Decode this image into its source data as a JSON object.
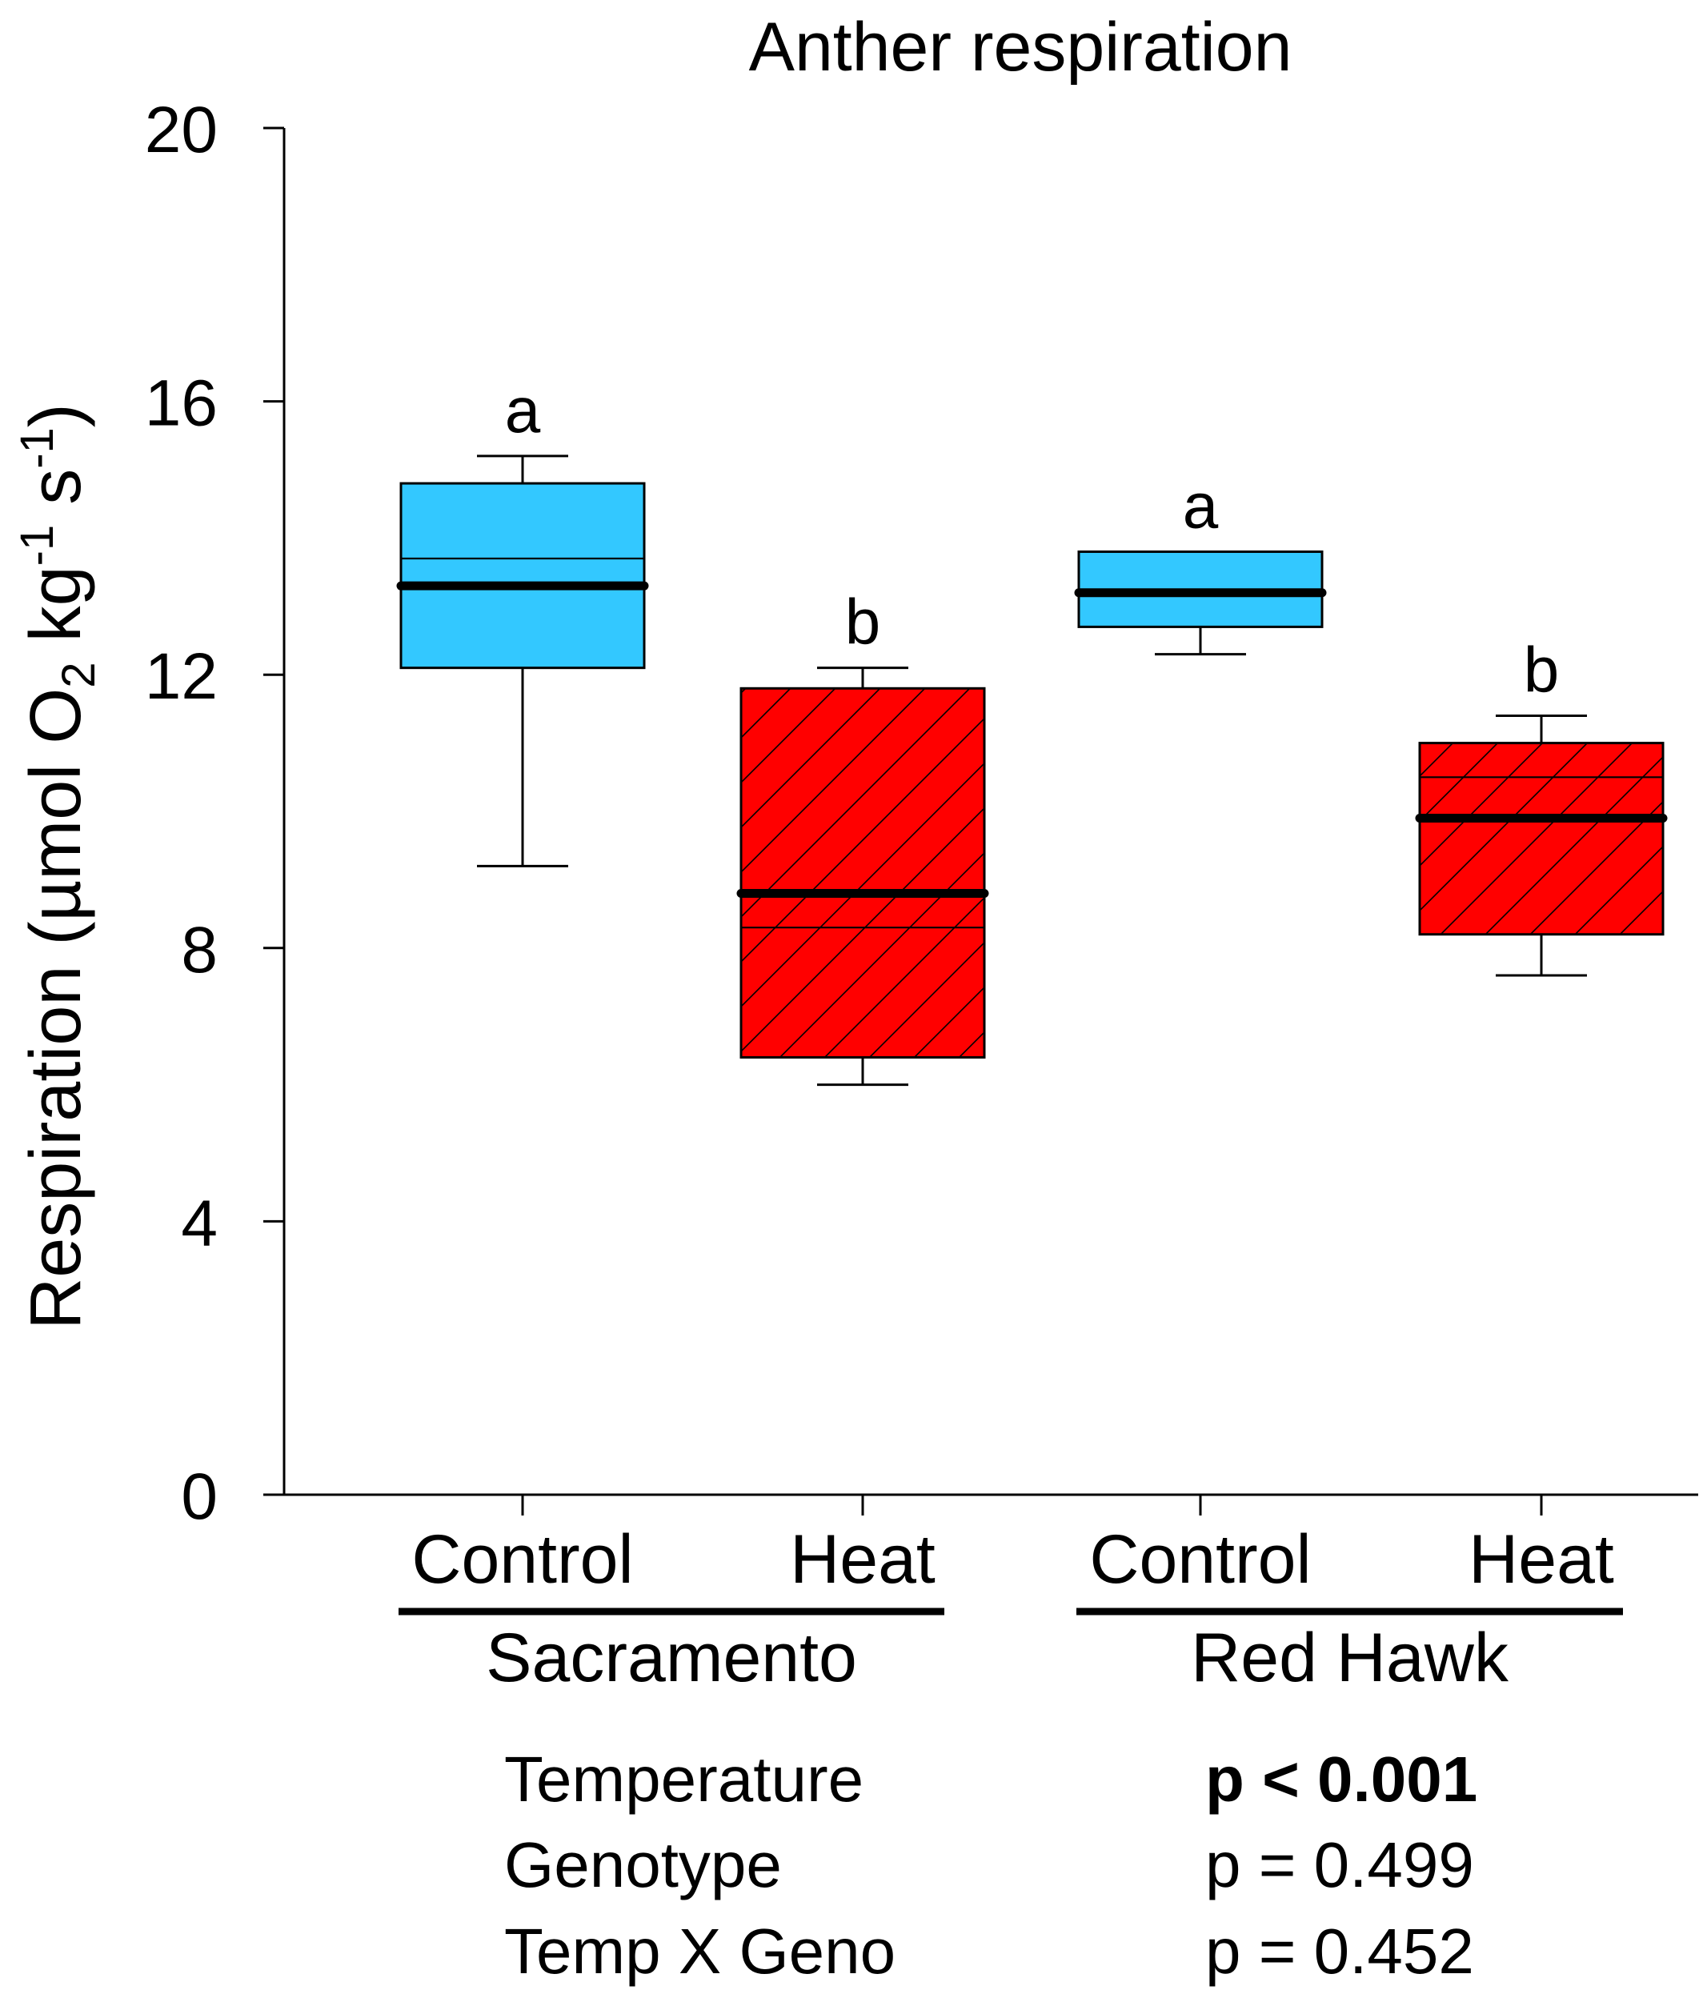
{
  "chart_data": {
    "type": "box",
    "title": "Anther respiration",
    "ylabel": {
      "main": "Respiration (µmol O",
      "sub": "2",
      "mid": " kg",
      "sup1": "-1",
      "s": " s",
      "sup2": "-1",
      "close": ")"
    },
    "ylim": [
      0,
      20
    ],
    "yticks": [
      "0",
      "4",
      "8",
      "12",
      "16",
      "20"
    ],
    "groups": [
      {
        "name": "Sacramento",
        "categories": [
          "Control",
          "Heat"
        ]
      },
      {
        "name": "Red Hawk",
        "categories": [
          "Control",
          "Heat"
        ]
      }
    ],
    "boxes": [
      {
        "group": "Sacramento",
        "label": "Control",
        "treatment": "control",
        "min": 9.2,
        "q1": 12.1,
        "median": 13.3,
        "mean": 13.7,
        "q3": 14.8,
        "max": 15.2,
        "letter": "a"
      },
      {
        "group": "Sacramento",
        "label": "Heat",
        "treatment": "heat",
        "min": 6.0,
        "q1": 6.4,
        "median": 8.8,
        "mean": 8.3,
        "q3": 11.8,
        "max": 12.1,
        "letter": "b"
      },
      {
        "group": "Red Hawk",
        "label": "Control",
        "treatment": "control",
        "min": 12.3,
        "q1": 12.7,
        "median": 13.2,
        "mean": 13.2,
        "q3": 13.8,
        "max": 13.8,
        "letter": "a"
      },
      {
        "group": "Red Hawk",
        "label": "Heat",
        "treatment": "heat",
        "min": 7.6,
        "q1": 8.2,
        "median": 9.9,
        "mean": 10.5,
        "q3": 11.0,
        "max": 11.4,
        "letter": "b"
      }
    ],
    "colors": {
      "control": "#33c8ff",
      "heat": "#ff0000",
      "line": "#000000"
    },
    "grid": false,
    "stats": [
      {
        "term": "Temperature",
        "result": "p < 0.001",
        "bold": true
      },
      {
        "term": "Genotype",
        "result": "p = 0.499",
        "bold": false
      },
      {
        "term": "Temp X Geno",
        "result": "p = 0.452",
        "bold": false
      }
    ]
  }
}
